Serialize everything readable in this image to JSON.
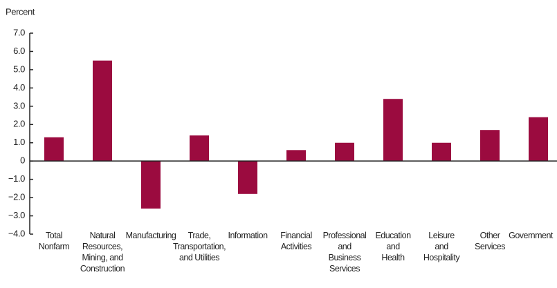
{
  "chart_data": {
    "type": "bar",
    "y_label": "Percent",
    "categories": [
      "Total\nNonfarm",
      "Natural\nResources,\nMining, and\nConstruction",
      "Manufacturing",
      "Trade,\nTransportation,\nand Utilities",
      "Information",
      "Financial\nActivities",
      "Professional\nand\nBusiness\nServices",
      "Education\nand\nHealth",
      "Leisure\nand\nHospitality",
      "Other\nServices",
      "Government"
    ],
    "values": [
      1.3,
      5.5,
      -2.6,
      1.4,
      -1.8,
      0.6,
      1.0,
      3.4,
      1.0,
      1.7,
      2.4
    ],
    "color": "#9b0b3f",
    "ylim": [
      -4,
      7
    ],
    "yticks": [
      {
        "value": -4,
        "label": "−4.0"
      },
      {
        "value": -3,
        "label": "−3.0"
      },
      {
        "value": -2,
        "label": "−2.0"
      },
      {
        "value": -1,
        "label": "−1.0"
      },
      0,
      {
        "value": 1,
        "label": "1.0"
      },
      {
        "value": 2,
        "label": "2.0"
      },
      {
        "value": 3,
        "label": "3.0"
      },
      {
        "value": 4,
        "label": "4.0"
      },
      {
        "value": 5,
        "label": "5.0"
      },
      {
        "value": 6,
        "label": "6.0"
      },
      {
        "value": 7,
        "label": "7.0"
      }
    ],
    "grid": false
  }
}
